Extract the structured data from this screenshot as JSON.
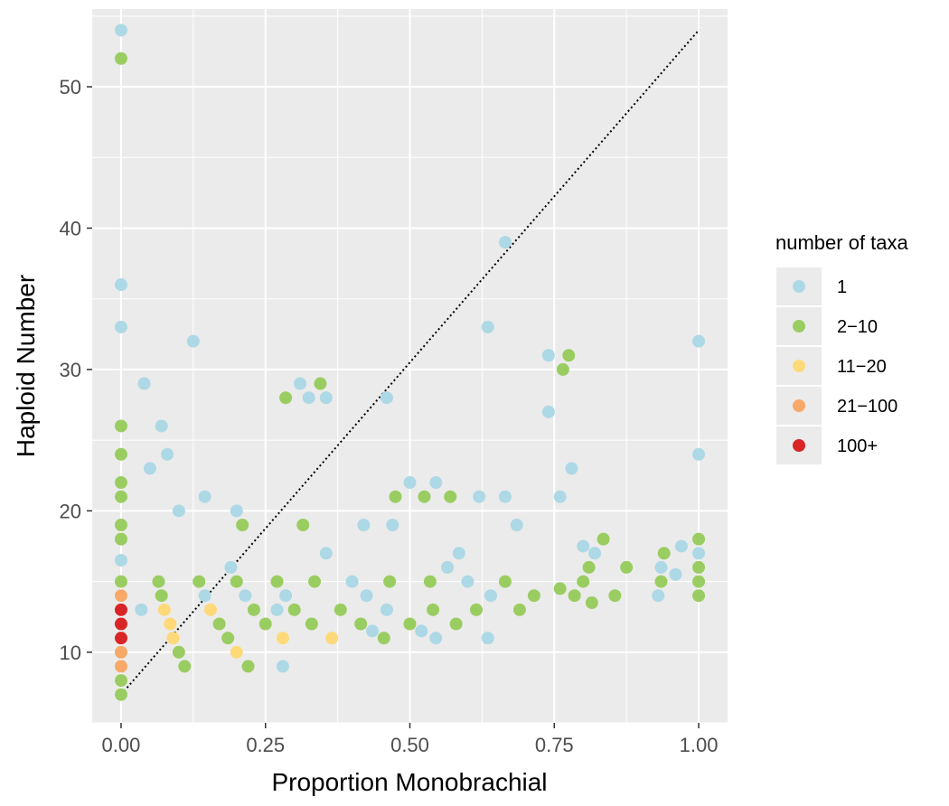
{
  "chart_data": {
    "type": "scatter",
    "title": "",
    "xlabel": "Proportion Monobrachial",
    "ylabel": "Haploid Number",
    "xlim": [
      -0.05,
      1.05
    ],
    "ylim": [
      5,
      55.5
    ],
    "x_ticks": [
      0,
      0.25,
      0.5,
      0.75,
      1
    ],
    "x_tick_labels": [
      "0.00",
      "0.25",
      "0.50",
      "0.75",
      "1.00"
    ],
    "y_ticks": [
      10,
      20,
      30,
      40,
      50
    ],
    "y_tick_labels": [
      "10",
      "20",
      "30",
      "40",
      "50"
    ],
    "grid": true,
    "legend": {
      "title": "number of taxa",
      "placement": "right",
      "entries": [
        {
          "key": "1",
          "label": "1",
          "color": "#add8e6"
        },
        {
          "key": "2-10",
          "label": "2−10",
          "color": "#9acd61"
        },
        {
          "key": "11-20",
          "label": "11−20",
          "color": "#fdd97a"
        },
        {
          "key": "21-100",
          "label": "21−100",
          "color": "#f8a868"
        },
        {
          "key": "100+",
          "label": "100+",
          "color": "#d92525"
        }
      ]
    },
    "reference_line": {
      "style": "dotted",
      "color": "#000000",
      "from": [
        0,
        7
      ],
      "to": [
        1,
        54
      ]
    },
    "series": [
      {
        "name": "1",
        "color": "#add8e6",
        "points": [
          [
            0,
            54
          ],
          [
            0,
            36
          ],
          [
            0,
            33
          ],
          [
            0,
            16.5
          ],
          [
            0.035,
            13
          ],
          [
            0.04,
            29
          ],
          [
            0.05,
            23
          ],
          [
            0.07,
            26
          ],
          [
            0.08,
            24
          ],
          [
            0.1,
            20
          ],
          [
            0.125,
            32
          ],
          [
            0.145,
            21
          ],
          [
            0.145,
            14
          ],
          [
            0.19,
            16
          ],
          [
            0.2,
            20
          ],
          [
            0.215,
            14
          ],
          [
            0.27,
            13
          ],
          [
            0.28,
            9
          ],
          [
            0.285,
            14
          ],
          [
            0.31,
            29
          ],
          [
            0.325,
            28
          ],
          [
            0.355,
            28
          ],
          [
            0.355,
            17
          ],
          [
            0.4,
            15
          ],
          [
            0.42,
            19
          ],
          [
            0.425,
            14
          ],
          [
            0.435,
            11.5
          ],
          [
            0.46,
            28
          ],
          [
            0.46,
            13
          ],
          [
            0.47,
            19
          ],
          [
            0.5,
            22
          ],
          [
            0.52,
            11.5
          ],
          [
            0.545,
            22
          ],
          [
            0.545,
            11
          ],
          [
            0.565,
            16
          ],
          [
            0.585,
            17
          ],
          [
            0.6,
            15
          ],
          [
            0.62,
            21
          ],
          [
            0.635,
            33
          ],
          [
            0.635,
            11
          ],
          [
            0.64,
            14
          ],
          [
            0.665,
            39
          ],
          [
            0.665,
            21
          ],
          [
            0.685,
            19
          ],
          [
            0.74,
            31
          ],
          [
            0.74,
            27
          ],
          [
            0.76,
            21
          ],
          [
            0.78,
            23
          ],
          [
            0.8,
            17.5
          ],
          [
            0.82,
            17
          ],
          [
            0.93,
            14
          ],
          [
            0.935,
            16
          ],
          [
            0.96,
            15.5
          ],
          [
            0.97,
            17.5
          ],
          [
            1,
            32
          ],
          [
            1,
            24
          ],
          [
            1,
            17
          ]
        ]
      },
      {
        "name": "2-10",
        "color": "#9acd61",
        "points": [
          [
            0,
            52
          ],
          [
            0,
            26
          ],
          [
            0,
            24
          ],
          [
            0,
            22
          ],
          [
            0,
            21
          ],
          [
            0,
            19
          ],
          [
            0,
            18
          ],
          [
            0,
            15
          ],
          [
            0,
            8
          ],
          [
            0,
            7
          ],
          [
            0.065,
            15
          ],
          [
            0.07,
            14
          ],
          [
            0.1,
            10
          ],
          [
            0.11,
            9
          ],
          [
            0.135,
            15
          ],
          [
            0.17,
            12
          ],
          [
            0.185,
            11
          ],
          [
            0.2,
            15
          ],
          [
            0.21,
            19
          ],
          [
            0.22,
            9
          ],
          [
            0.23,
            13
          ],
          [
            0.25,
            12
          ],
          [
            0.27,
            15
          ],
          [
            0.285,
            28
          ],
          [
            0.3,
            13
          ],
          [
            0.315,
            19
          ],
          [
            0.33,
            12
          ],
          [
            0.335,
            15
          ],
          [
            0.345,
            29
          ],
          [
            0.38,
            13
          ],
          [
            0.415,
            12
          ],
          [
            0.455,
            11
          ],
          [
            0.465,
            15
          ],
          [
            0.475,
            21
          ],
          [
            0.5,
            12
          ],
          [
            0.525,
            21
          ],
          [
            0.535,
            15
          ],
          [
            0.54,
            13
          ],
          [
            0.57,
            21
          ],
          [
            0.58,
            12
          ],
          [
            0.615,
            13
          ],
          [
            0.665,
            15
          ],
          [
            0.69,
            13
          ],
          [
            0.715,
            14
          ],
          [
            0.76,
            14.5
          ],
          [
            0.765,
            30
          ],
          [
            0.775,
            31
          ],
          [
            0.785,
            14
          ],
          [
            0.8,
            15
          ],
          [
            0.81,
            16
          ],
          [
            0.815,
            13.5
          ],
          [
            0.835,
            18
          ],
          [
            0.855,
            14
          ],
          [
            0.875,
            16
          ],
          [
            0.935,
            15
          ],
          [
            0.94,
            17
          ],
          [
            1,
            18
          ],
          [
            1,
            16
          ],
          [
            1,
            15
          ],
          [
            1,
            14
          ]
        ]
      },
      {
        "name": "11-20",
        "color": "#fdd97a",
        "points": [
          [
            0.075,
            13
          ],
          [
            0.085,
            12
          ],
          [
            0.09,
            11
          ],
          [
            0.155,
            13
          ],
          [
            0.2,
            10
          ],
          [
            0.28,
            11
          ],
          [
            0.365,
            11
          ]
        ]
      },
      {
        "name": "21-100",
        "color": "#f8a868",
        "points": [
          [
            0,
            14
          ],
          [
            0,
            10
          ],
          [
            0,
            9
          ]
        ]
      },
      {
        "name": "100+",
        "color": "#d92525",
        "points": [
          [
            0,
            13
          ],
          [
            0,
            12
          ],
          [
            0,
            11
          ]
        ]
      }
    ]
  }
}
